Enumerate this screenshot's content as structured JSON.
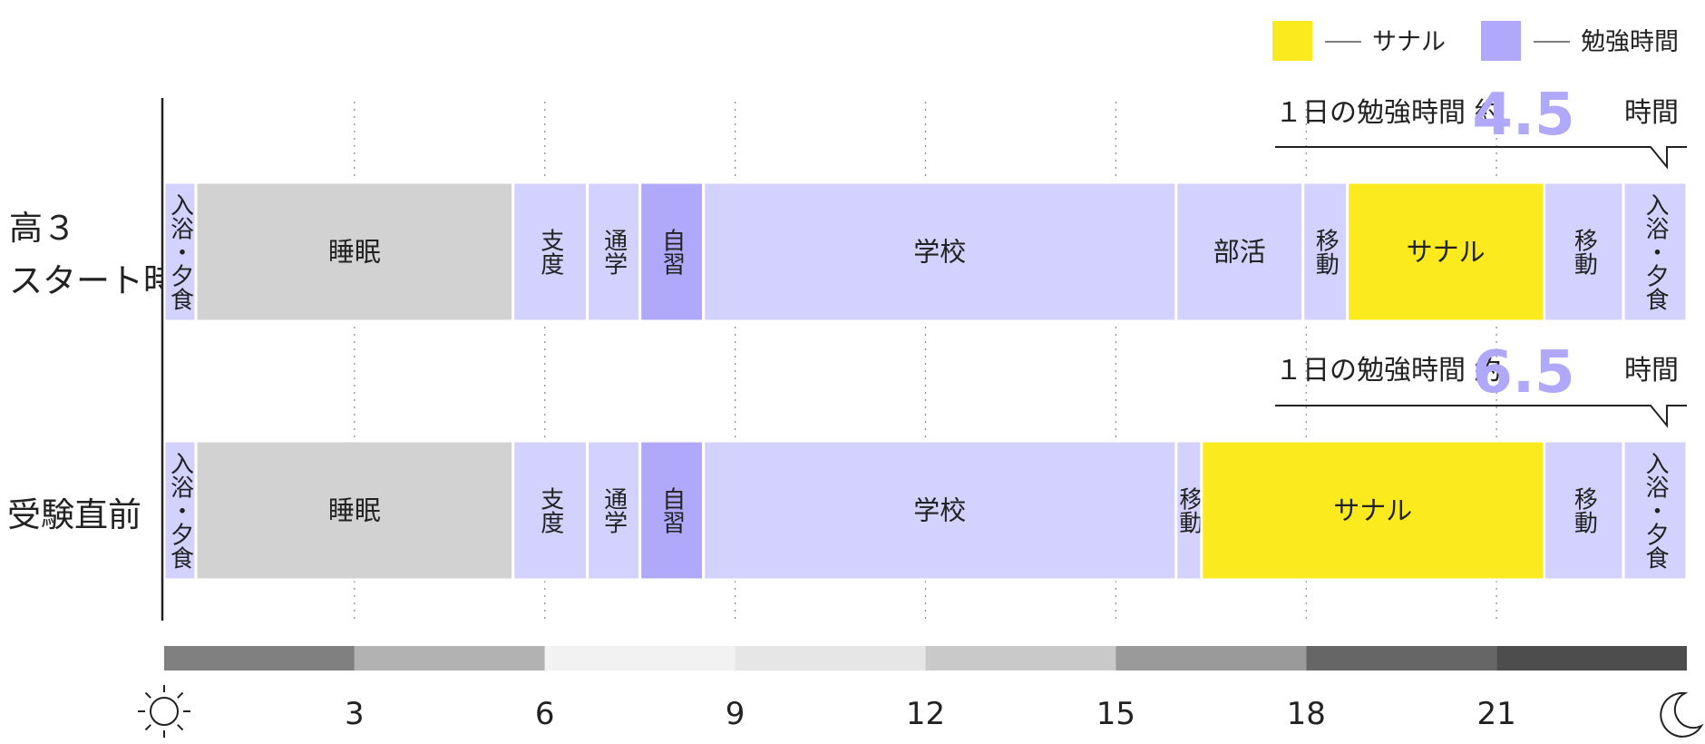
{
  "legend": [
    {
      "label": "サナル",
      "color": "#faea1e"
    },
    {
      "label": "勉強時間",
      "color": "#b0a8fa"
    }
  ],
  "colors": {
    "sleep": "#d2d2d2",
    "activity": "#d3d1fd",
    "self_study": "#b0a8fa",
    "sanaru": "#faea1e",
    "axis": "#222222",
    "grid": "#888888"
  },
  "chart_data": {
    "type": "bar",
    "xlim": [
      0,
      24
    ],
    "xticks": [
      "3",
      "6",
      "9",
      "12",
      "15",
      "18",
      "21"
    ],
    "tick_values": [
      3,
      6,
      9,
      12,
      15,
      18,
      21
    ],
    "time_band": [
      {
        "from": 0,
        "to": 3,
        "color": "#808080"
      },
      {
        "from": 3,
        "to": 6,
        "color": "#b2b2b2"
      },
      {
        "from": 6,
        "to": 9,
        "color": "#f2f2f2"
      },
      {
        "from": 9,
        "to": 12,
        "color": "#e6e6e6"
      },
      {
        "from": 12,
        "to": 15,
        "color": "#c9c9c9"
      },
      {
        "from": 15,
        "to": 18,
        "color": "#9a9a9a"
      },
      {
        "from": 18,
        "to": 21,
        "color": "#666666"
      },
      {
        "from": 21,
        "to": 24,
        "color": "#4d4d4d"
      }
    ],
    "icons": {
      "start": "sun-icon",
      "end": "moon-icon"
    },
    "rows": [
      {
        "label": [
          "高３",
          "スタート時"
        ],
        "study_prefix": "１日の勉強時間  約",
        "study_value": "4.5",
        "study_suffix": "時間",
        "segments": [
          {
            "label": "入浴・夕食",
            "start": 0,
            "end": 0.5,
            "kind": "activity",
            "vertical": true
          },
          {
            "label": "睡眠",
            "start": 0.5,
            "end": 5.5,
            "kind": "sleep",
            "vertical": false
          },
          {
            "label": "支度",
            "start": 5.5,
            "end": 6.67,
            "kind": "activity",
            "vertical": true
          },
          {
            "label": "通学",
            "start": 6.67,
            "end": 7.5,
            "kind": "activity",
            "vertical": true
          },
          {
            "label": "自習",
            "start": 7.5,
            "end": 8.5,
            "kind": "self_study",
            "vertical": true
          },
          {
            "label": "学校",
            "start": 8.5,
            "end": 15.95,
            "kind": "activity",
            "vertical": false
          },
          {
            "label": "部活",
            "start": 15.95,
            "end": 17.95,
            "kind": "activity",
            "vertical": false
          },
          {
            "label": "移動",
            "start": 17.95,
            "end": 18.65,
            "kind": "activity",
            "vertical": true
          },
          {
            "label": "サナル",
            "start": 18.65,
            "end": 21.75,
            "kind": "sanaru",
            "vertical": false
          },
          {
            "label": "移動",
            "start": 21.75,
            "end": 23.0,
            "kind": "activity",
            "vertical": true
          },
          {
            "label": "入浴・夕食",
            "start": 23.0,
            "end": 24,
            "kind": "activity",
            "vertical": true
          }
        ]
      },
      {
        "label": [
          "受験直前"
        ],
        "study_prefix": "１日の勉強時間  約",
        "study_value": "6.5",
        "study_suffix": "時間",
        "segments": [
          {
            "label": "入浴・夕食",
            "start": 0,
            "end": 0.5,
            "kind": "activity",
            "vertical": true
          },
          {
            "label": "睡眠",
            "start": 0.5,
            "end": 5.5,
            "kind": "sleep",
            "vertical": false
          },
          {
            "label": "支度",
            "start": 5.5,
            "end": 6.67,
            "kind": "activity",
            "vertical": true
          },
          {
            "label": "通学",
            "start": 6.67,
            "end": 7.5,
            "kind": "activity",
            "vertical": true
          },
          {
            "label": "自習",
            "start": 7.5,
            "end": 8.5,
            "kind": "self_study",
            "vertical": true
          },
          {
            "label": "学校",
            "start": 8.5,
            "end": 15.95,
            "kind": "activity",
            "vertical": false
          },
          {
            "label": "移動",
            "start": 15.95,
            "end": 16.35,
            "kind": "activity",
            "vertical": true
          },
          {
            "label": "サナル",
            "start": 16.35,
            "end": 21.75,
            "kind": "sanaru",
            "vertical": false
          },
          {
            "label": "移動",
            "start": 21.75,
            "end": 23.0,
            "kind": "activity",
            "vertical": true
          },
          {
            "label": "入浴・夕食",
            "start": 23.0,
            "end": 24,
            "kind": "activity",
            "vertical": true
          }
        ]
      }
    ]
  }
}
